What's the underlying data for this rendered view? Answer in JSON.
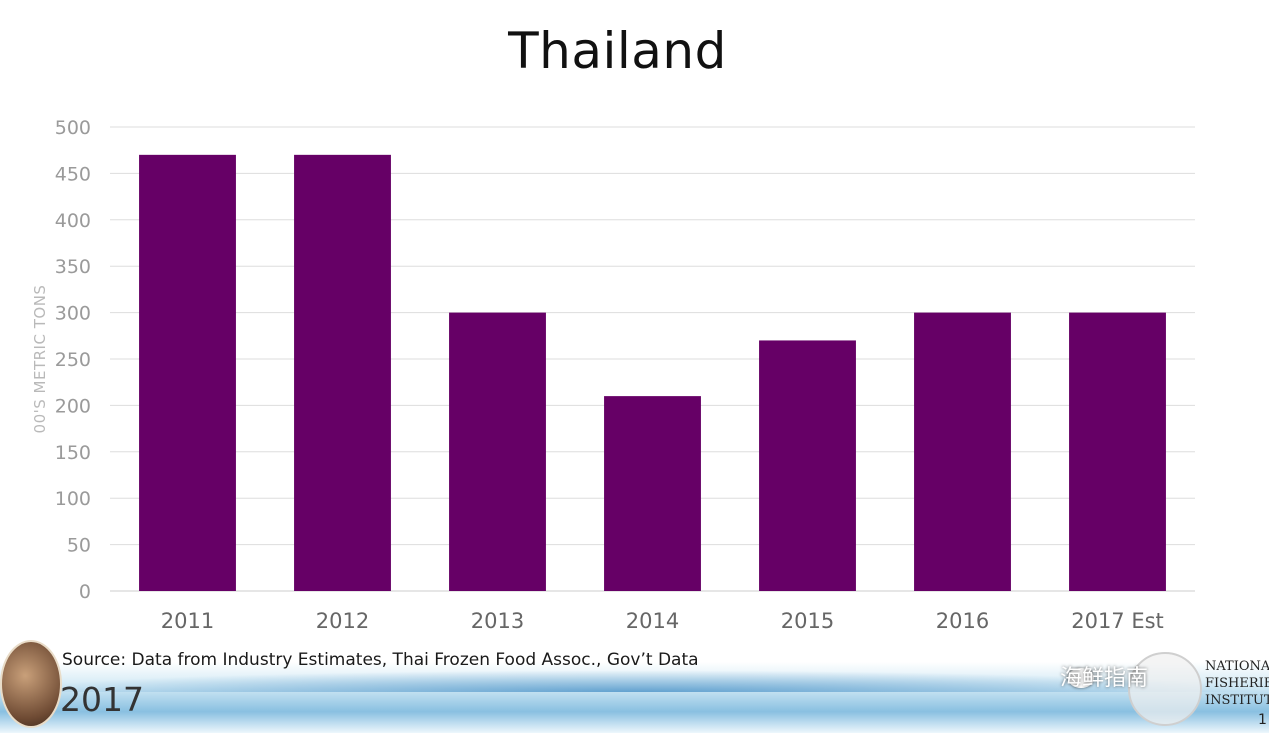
{
  "chart_data": {
    "type": "bar",
    "title": "Thailand",
    "ylabel": "00'S METRIC TONS",
    "xlabel": "",
    "categories": [
      "2011",
      "2012",
      "2013",
      "2014",
      "2015",
      "2016",
      "2017 Est"
    ],
    "values": [
      470,
      470,
      300,
      210,
      270,
      300,
      300
    ],
    "ylim": [
      0,
      500
    ],
    "yticks": [
      0,
      50,
      100,
      150,
      200,
      250,
      300,
      350,
      400,
      450,
      500
    ],
    "grid": true,
    "legend": "none",
    "bar_color": "#660066",
    "grid_color": "#dddddd",
    "tick_color": "#9a9a9a"
  },
  "footer": {
    "source": "Source: Data from Industry Estimates, Thai Frozen Food Assoc., Gov’t Data",
    "year": "2017",
    "org_lines": [
      "NATIONAL",
      "FISHERIES",
      "INSTITUTE"
    ],
    "page_number": "1",
    "watermark": "海鲜指南"
  }
}
